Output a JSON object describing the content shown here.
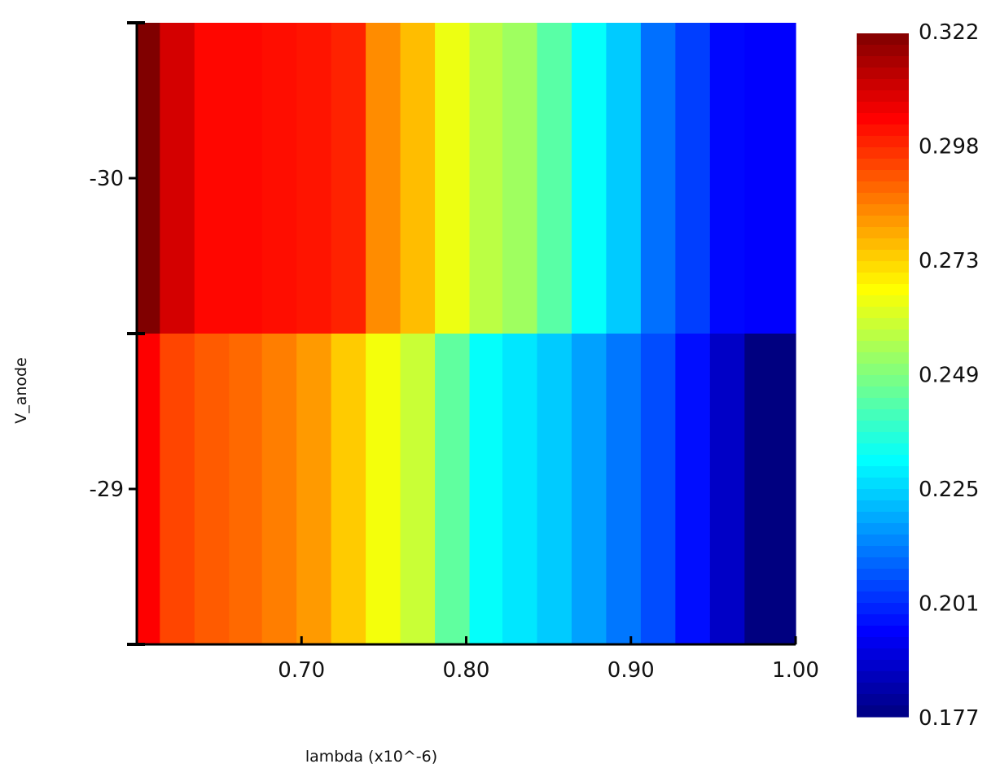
{
  "chart_data": {
    "type": "heatmap",
    "xlabel": "lambda (x10^-6)",
    "ylabel": "V_anode",
    "x_tick_labels": [
      {
        "value": 0.7,
        "label": "0.70"
      },
      {
        "value": 0.8,
        "label": "0.80"
      },
      {
        "value": 0.9,
        "label": "0.90"
      },
      {
        "value": 1.0,
        "label": "1.00"
      }
    ],
    "y_tick_labels": [
      {
        "value": -30,
        "label": "-30"
      },
      {
        "value": -29,
        "label": "-29"
      }
    ],
    "xlim": [
      0.6,
      1.0
    ],
    "ylim": [
      -30.5,
      -28.5
    ],
    "y_rows": [
      -30,
      -29
    ],
    "x_columns": [
      {
        "x0": 0.6,
        "x1": 0.614
      },
      {
        "x0": 0.614,
        "x1": 0.635
      },
      {
        "x0": 0.635,
        "x1": 0.656
      },
      {
        "x0": 0.656,
        "x1": 0.676
      },
      {
        "x0": 0.676,
        "x1": 0.697
      },
      {
        "x0": 0.697,
        "x1": 0.718
      },
      {
        "x0": 0.718,
        "x1": 0.739
      },
      {
        "x0": 0.739,
        "x1": 0.76
      },
      {
        "x0": 0.76,
        "x1": 0.781
      },
      {
        "x0": 0.781,
        "x1": 0.802
      },
      {
        "x0": 0.802,
        "x1": 0.822
      },
      {
        "x0": 0.822,
        "x1": 0.843
      },
      {
        "x0": 0.843,
        "x1": 0.864
      },
      {
        "x0": 0.864,
        "x1": 0.885
      },
      {
        "x0": 0.885,
        "x1": 0.906
      },
      {
        "x0": 0.906,
        "x1": 0.927
      },
      {
        "x0": 0.927,
        "x1": 0.948
      },
      {
        "x0": 0.948,
        "x1": 0.969
      },
      {
        "x0": 0.969,
        "x1": 1.0
      }
    ],
    "values": [
      [
        0.322,
        0.31,
        0.303,
        0.303,
        0.302,
        0.301,
        0.299,
        0.284,
        0.277,
        0.265,
        0.258,
        0.254,
        0.244,
        0.232,
        0.224,
        0.211,
        0.204,
        0.196,
        0.195
      ],
      [
        0.304,
        0.294,
        0.291,
        0.289,
        0.286,
        0.282,
        0.275,
        0.266,
        0.26,
        0.245,
        0.232,
        0.228,
        0.224,
        0.218,
        0.212,
        0.206,
        0.197,
        0.187,
        0.177
      ]
    ],
    "colorbar": {
      "min": 0.177,
      "max": 0.322,
      "colormap": "jet",
      "tick_labels": [
        "0.322",
        "0.298",
        "0.273",
        "0.249",
        "0.225",
        "0.201",
        "0.177"
      ]
    },
    "grid": false,
    "legend": "colorbar-right"
  }
}
